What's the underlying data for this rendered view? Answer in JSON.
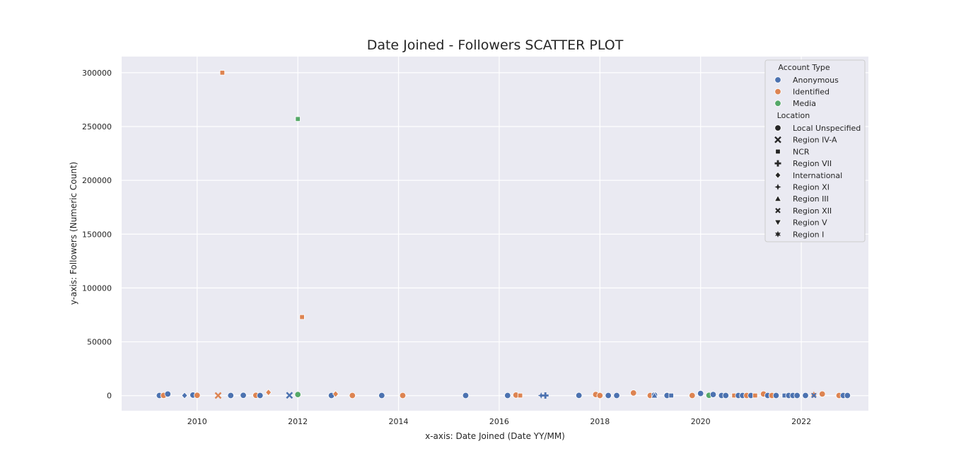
{
  "chart_data": {
    "type": "scatter",
    "title": "Date Joined - Followers SCATTER PLOT",
    "xlabel": "x-axis: Date Joined (Date YY/MM)",
    "ylabel": "y-axis: Followers (Numeric Count)",
    "xlim": [
      "2008-07-01",
      "2023-05-01"
    ],
    "ylim": [
      -14000,
      315000
    ],
    "x_ticks": [
      "2010",
      "2012",
      "2014",
      "2016",
      "2018",
      "2020",
      "2022"
    ],
    "y_ticks": [
      "0",
      "50000",
      "100000",
      "150000",
      "200000",
      "250000",
      "300000"
    ],
    "grid": true,
    "background": "#eaeaf2",
    "legend": {
      "placement": "top-right",
      "hue_title": "Account Type",
      "hue": [
        {
          "label": "Anonymous",
          "color": "#4c72b0"
        },
        {
          "label": "Identified",
          "color": "#dd8452"
        },
        {
          "label": "Media",
          "color": "#55a868"
        }
      ],
      "style_title": "Location",
      "style": [
        {
          "label": "Local Unspecified",
          "marker": "circle"
        },
        {
          "label": "Region IV-A",
          "marker": "x-thick"
        },
        {
          "label": "NCR",
          "marker": "square"
        },
        {
          "label": "Region VII",
          "marker": "plus"
        },
        {
          "label": "International",
          "marker": "diamond"
        },
        {
          "label": "Region XI",
          "marker": "star4"
        },
        {
          "label": "Region III",
          "marker": "triangle-up"
        },
        {
          "label": "Region XII",
          "marker": "x-small"
        },
        {
          "label": "Region V",
          "marker": "triangle-down"
        },
        {
          "label": "Region I",
          "marker": "star6"
        }
      ]
    },
    "points": [
      {
        "x": "2009-04",
        "y": 100,
        "type": "Anonymous",
        "loc": "Local Unspecified"
      },
      {
        "x": "2009-05",
        "y": 200,
        "type": "Identified",
        "loc": "Local Unspecified"
      },
      {
        "x": "2009-06",
        "y": 1500,
        "type": "Anonymous",
        "loc": "Local Unspecified"
      },
      {
        "x": "2009-10",
        "y": 100,
        "type": "Anonymous",
        "loc": "International"
      },
      {
        "x": "2009-12",
        "y": 500,
        "type": "Anonymous",
        "loc": "Local Unspecified"
      },
      {
        "x": "2010-01",
        "y": 300,
        "type": "Identified",
        "loc": "Local Unspecified"
      },
      {
        "x": "2010-06",
        "y": 100,
        "type": "Identified",
        "loc": "Region IV-A"
      },
      {
        "x": "2010-07",
        "y": 300000,
        "type": "Identified",
        "loc": "NCR"
      },
      {
        "x": "2010-09",
        "y": 100,
        "type": "Anonymous",
        "loc": "Local Unspecified"
      },
      {
        "x": "2010-12",
        "y": 300,
        "type": "Anonymous",
        "loc": "Local Unspecified"
      },
      {
        "x": "2011-03",
        "y": 300,
        "type": "Identified",
        "loc": "Local Unspecified"
      },
      {
        "x": "2011-04",
        "y": 100,
        "type": "Anonymous",
        "loc": "Local Unspecified"
      },
      {
        "x": "2011-06",
        "y": 3000,
        "type": "Identified",
        "loc": "International"
      },
      {
        "x": "2011-11",
        "y": 300,
        "type": "Anonymous",
        "loc": "Region IV-A"
      },
      {
        "x": "2012-01",
        "y": 1000,
        "type": "Media",
        "loc": "Local Unspecified"
      },
      {
        "x": "2012-01",
        "y": 257000,
        "type": "Media",
        "loc": "NCR"
      },
      {
        "x": "2012-02",
        "y": 73000,
        "type": "Identified",
        "loc": "NCR"
      },
      {
        "x": "2012-09",
        "y": 100,
        "type": "Anonymous",
        "loc": "Local Unspecified"
      },
      {
        "x": "2012-10",
        "y": 1500,
        "type": "Identified",
        "loc": "International"
      },
      {
        "x": "2013-02",
        "y": 100,
        "type": "Identified",
        "loc": "Local Unspecified"
      },
      {
        "x": "2013-09",
        "y": 100,
        "type": "Anonymous",
        "loc": "Local Unspecified"
      },
      {
        "x": "2014-02",
        "y": 100,
        "type": "Identified",
        "loc": "Local Unspecified"
      },
      {
        "x": "2015-05",
        "y": 100,
        "type": "Anonymous",
        "loc": "Local Unspecified"
      },
      {
        "x": "2016-03",
        "y": 100,
        "type": "Anonymous",
        "loc": "Local Unspecified"
      },
      {
        "x": "2016-05",
        "y": 500,
        "type": "Identified",
        "loc": "Local Unspecified"
      },
      {
        "x": "2016-06",
        "y": 100,
        "type": "Identified",
        "loc": "NCR"
      },
      {
        "x": "2016-11",
        "y": 100,
        "type": "Anonymous",
        "loc": "Region XI"
      },
      {
        "x": "2016-12",
        "y": 100,
        "type": "Anonymous",
        "loc": "Region VII"
      },
      {
        "x": "2017-08",
        "y": 200,
        "type": "Anonymous",
        "loc": "Local Unspecified"
      },
      {
        "x": "2017-12",
        "y": 1000,
        "type": "Identified",
        "loc": "Local Unspecified"
      },
      {
        "x": "2018-01",
        "y": 100,
        "type": "Identified",
        "loc": "Local Unspecified"
      },
      {
        "x": "2018-03",
        "y": 100,
        "type": "Anonymous",
        "loc": "Local Unspecified"
      },
      {
        "x": "2018-05",
        "y": 100,
        "type": "Anonymous",
        "loc": "Local Unspecified"
      },
      {
        "x": "2018-09",
        "y": 2500,
        "type": "Identified",
        "loc": "Local Unspecified"
      },
      {
        "x": "2019-01",
        "y": 100,
        "type": "Identified",
        "loc": "Local Unspecified"
      },
      {
        "x": "2019-02",
        "y": 500,
        "type": "Anonymous",
        "loc": "Local Unspecified"
      },
      {
        "x": "2019-02",
        "y": 100,
        "type": "Anonymous",
        "loc": "Region III"
      },
      {
        "x": "2019-05",
        "y": 500,
        "type": "Identified",
        "loc": "Local Unspecified"
      },
      {
        "x": "2019-05",
        "y": 100,
        "type": "Anonymous",
        "loc": "Local Unspecified"
      },
      {
        "x": "2019-06",
        "y": 100,
        "type": "Anonymous",
        "loc": "NCR"
      },
      {
        "x": "2019-11",
        "y": 100,
        "type": "Identified",
        "loc": "Local Unspecified"
      },
      {
        "x": "2020-01",
        "y": 2000,
        "type": "Anonymous",
        "loc": "Local Unspecified"
      },
      {
        "x": "2020-03",
        "y": 300,
        "type": "Media",
        "loc": "Local Unspecified"
      },
      {
        "x": "2020-04",
        "y": 1000,
        "type": "Anonymous",
        "loc": "Local Unspecified"
      },
      {
        "x": "2020-06",
        "y": 100,
        "type": "Anonymous",
        "loc": "Local Unspecified"
      },
      {
        "x": "2020-07",
        "y": 100,
        "type": "Anonymous",
        "loc": "Local Unspecified"
      },
      {
        "x": "2020-09",
        "y": 100,
        "type": "Identified",
        "loc": "NCR"
      },
      {
        "x": "2020-10",
        "y": 100,
        "type": "Anonymous",
        "loc": "Local Unspecified"
      },
      {
        "x": "2020-11",
        "y": 100,
        "type": "Anonymous",
        "loc": "Local Unspecified"
      },
      {
        "x": "2020-12",
        "y": 100,
        "type": "Identified",
        "loc": "Local Unspecified"
      },
      {
        "x": "2021-01",
        "y": 100,
        "type": "Anonymous",
        "loc": "Local Unspecified"
      },
      {
        "x": "2021-02",
        "y": 100,
        "type": "Identified",
        "loc": "NCR"
      },
      {
        "x": "2021-04",
        "y": 1500,
        "type": "Identified",
        "loc": "Local Unspecified"
      },
      {
        "x": "2021-05",
        "y": 100,
        "type": "Anonymous",
        "loc": "Local Unspecified"
      },
      {
        "x": "2021-06",
        "y": 100,
        "type": "Identified",
        "loc": "Local Unspecified"
      },
      {
        "x": "2021-07",
        "y": 100,
        "type": "Anonymous",
        "loc": "Local Unspecified"
      },
      {
        "x": "2021-09",
        "y": 100,
        "type": "Anonymous",
        "loc": "NCR"
      },
      {
        "x": "2021-10",
        "y": 100,
        "type": "Anonymous",
        "loc": "Local Unspecified"
      },
      {
        "x": "2021-11",
        "y": 100,
        "type": "Anonymous",
        "loc": "Local Unspecified"
      },
      {
        "x": "2021-12",
        "y": 100,
        "type": "Anonymous",
        "loc": "Local Unspecified"
      },
      {
        "x": "2022-02",
        "y": 100,
        "type": "Anonymous",
        "loc": "Local Unspecified"
      },
      {
        "x": "2022-04",
        "y": 1000,
        "type": "Identified",
        "loc": "Region I"
      },
      {
        "x": "2022-04",
        "y": 100,
        "type": "Anonymous",
        "loc": "Region XII"
      },
      {
        "x": "2022-06",
        "y": 1500,
        "type": "Identified",
        "loc": "Local Unspecified"
      },
      {
        "x": "2022-10",
        "y": 100,
        "type": "Identified",
        "loc": "Local Unspecified"
      },
      {
        "x": "2022-11",
        "y": 100,
        "type": "Anonymous",
        "loc": "Local Unspecified"
      },
      {
        "x": "2022-12",
        "y": 100,
        "type": "Anonymous",
        "loc": "Local Unspecified"
      }
    ]
  }
}
